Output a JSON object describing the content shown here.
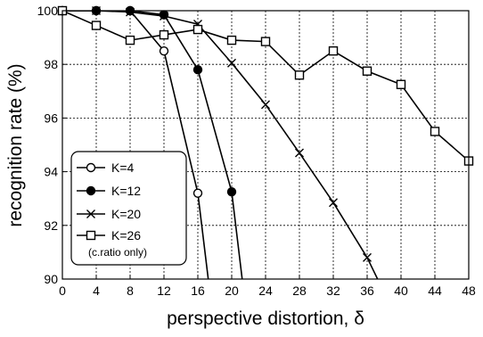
{
  "chart_data": {
    "type": "line",
    "xlabel": "perspective distortion, δ",
    "ylabel": "recognition rate (%)",
    "xlim": [
      0,
      48
    ],
    "ylim": [
      90,
      100
    ],
    "xticks": [
      0,
      4,
      8,
      12,
      16,
      20,
      24,
      28,
      32,
      36,
      40,
      44,
      48
    ],
    "yticks": [
      90,
      92,
      94,
      96,
      98,
      100
    ],
    "grid": true,
    "legend": {
      "placement": "bottom-left"
    },
    "series": [
      {
        "name": "K=4",
        "note": "",
        "marker": "open-circle",
        "x": [
          0,
          4,
          8,
          12,
          16,
          18
        ],
        "y": [
          100,
          100,
          100,
          98.5,
          93.2,
          88
        ]
      },
      {
        "name": "K=12",
        "note": "",
        "marker": "filled-circle",
        "x": [
          0,
          4,
          8,
          12,
          16,
          20,
          22
        ],
        "y": [
          100,
          100,
          100,
          99.85,
          97.8,
          93.25,
          88
        ]
      },
      {
        "name": "K=20",
        "note": "",
        "marker": "x",
        "x": [
          0,
          4,
          8,
          12,
          16,
          20,
          24,
          28,
          32,
          36,
          38
        ],
        "y": [
          100,
          100,
          99.95,
          99.8,
          99.5,
          98.05,
          96.5,
          94.7,
          92.85,
          90.8,
          89.5
        ]
      },
      {
        "name": "K=26",
        "note": "(c.ratio only)",
        "marker": "open-square",
        "x": [
          0,
          4,
          8,
          12,
          16,
          20,
          24,
          28,
          32,
          36,
          40,
          44,
          48
        ],
        "y": [
          100,
          99.45,
          98.9,
          99.1,
          99.3,
          98.9,
          98.85,
          97.6,
          98.5,
          97.75,
          97.25,
          95.5,
          94.4
        ]
      }
    ]
  }
}
